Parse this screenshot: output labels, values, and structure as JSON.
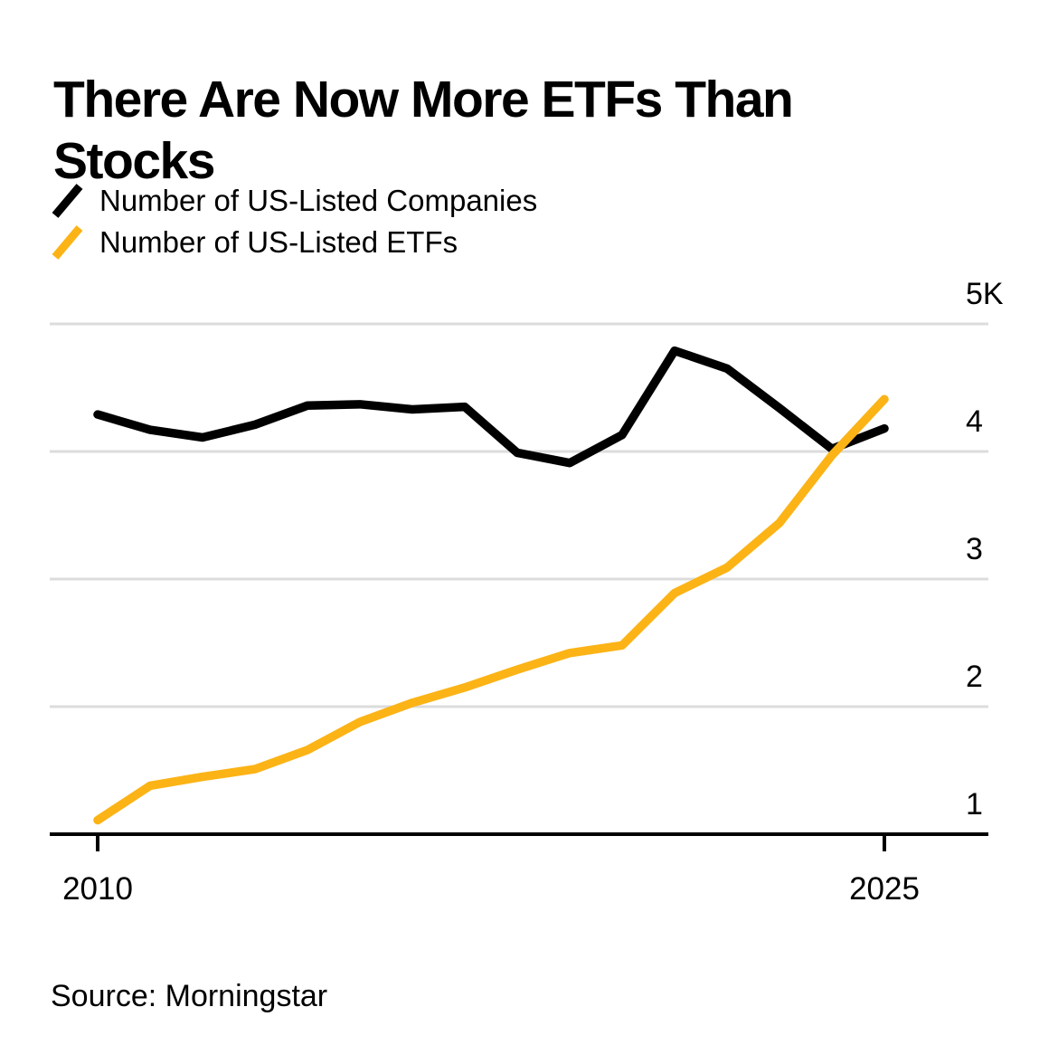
{
  "header": {
    "title": "There Are Now More ETFs Than Stocks"
  },
  "legend": {
    "items": [
      {
        "label": "Number of US-Listed Companies",
        "color": "#000000"
      },
      {
        "label": "Number of US-Listed ETFs",
        "color": "#FBB316"
      }
    ]
  },
  "footer": {
    "source": "Source: Morningstar"
  },
  "colors": {
    "background": "#FFFFFF",
    "companies_line": "#000000",
    "etfs_line": "#FBB316",
    "gridline": "#DCDCDC",
    "axis": "#000000",
    "text": "#000000"
  },
  "chart_data": {
    "type": "line",
    "title": "There Are Now More ETFs Than Stocks",
    "unit": "thousands",
    "x": [
      2010,
      2011,
      2012,
      2013,
      2014,
      2015,
      2016,
      2017,
      2018,
      2019,
      2020,
      2021,
      2022,
      2023,
      2024,
      2025
    ],
    "series": [
      {
        "name": "Number of US-Listed Companies",
        "color": "#000000",
        "values": [
          4.29,
          4.17,
          4.11,
          4.21,
          4.36,
          4.37,
          4.33,
          4.35,
          3.99,
          3.91,
          4.13,
          4.79,
          4.65,
          4.34,
          4.02,
          4.18
        ]
      },
      {
        "name": "Number of US-Listed ETFs",
        "color": "#FBB316",
        "values": [
          1.11,
          1.38,
          1.45,
          1.51,
          1.66,
          1.88,
          2.03,
          2.15,
          2.29,
          2.42,
          2.48,
          2.89,
          3.09,
          3.44,
          3.97,
          4.41
        ]
      }
    ],
    "ylim": [
      1,
      5
    ],
    "xlim": [
      2010,
      2025
    ],
    "grid": "horizontal",
    "legend_position": "top-left",
    "y_ticks": [
      {
        "value": 5,
        "label": "5K"
      },
      {
        "value": 4,
        "label": "4"
      },
      {
        "value": 3,
        "label": "3"
      },
      {
        "value": 2,
        "label": "2"
      },
      {
        "value": 1,
        "label": "1"
      }
    ],
    "x_ticks": [
      {
        "value": 2010,
        "label": "2010"
      },
      {
        "value": 2025,
        "label": "2025"
      }
    ]
  }
}
